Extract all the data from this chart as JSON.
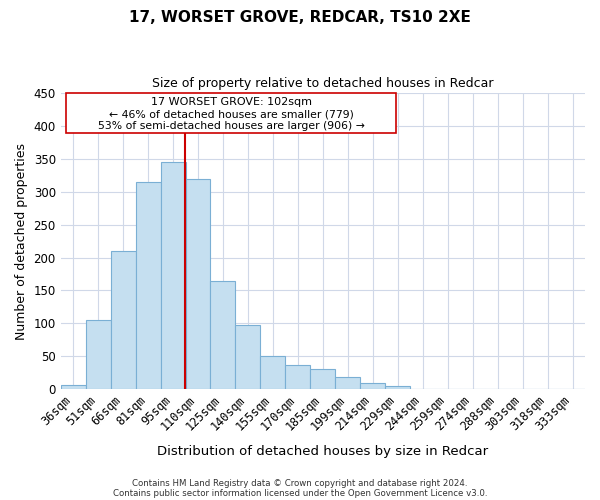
{
  "title": "17, WORSET GROVE, REDCAR, TS10 2XE",
  "subtitle": "Size of property relative to detached houses in Redcar",
  "xlabel": "Distribution of detached houses by size in Redcar",
  "ylabel": "Number of detached properties",
  "bar_color": "#c5dff0",
  "bar_edge_color": "#7aafd4",
  "categories": [
    "36sqm",
    "51sqm",
    "66sqm",
    "81sqm",
    "95sqm",
    "110sqm",
    "125sqm",
    "140sqm",
    "155sqm",
    "170sqm",
    "185sqm",
    "199sqm",
    "214sqm",
    "229sqm",
    "244sqm",
    "259sqm",
    "274sqm",
    "288sqm",
    "303sqm",
    "318sqm",
    "333sqm"
  ],
  "values": [
    6,
    105,
    210,
    315,
    345,
    320,
    165,
    97,
    50,
    37,
    30,
    18,
    9,
    5,
    0,
    0,
    0,
    0,
    0,
    0,
    0
  ],
  "ylim": [
    0,
    450
  ],
  "yticks": [
    0,
    50,
    100,
    150,
    200,
    250,
    300,
    350,
    400,
    450
  ],
  "annotation_title": "17 WORSET GROVE: 102sqm",
  "annotation_line1": "← 46% of detached houses are smaller (779)",
  "annotation_line2": "53% of semi-detached houses are larger (906) →",
  "footer1": "Contains HM Land Registry data © Crown copyright and database right 2024.",
  "footer2": "Contains public sector information licensed under the Open Government Licence v3.0.",
  "background_color": "#ffffff",
  "grid_color": "#d0d8e8",
  "red_line_color": "#cc0000",
  "annotation_box_color": "#cc0000"
}
